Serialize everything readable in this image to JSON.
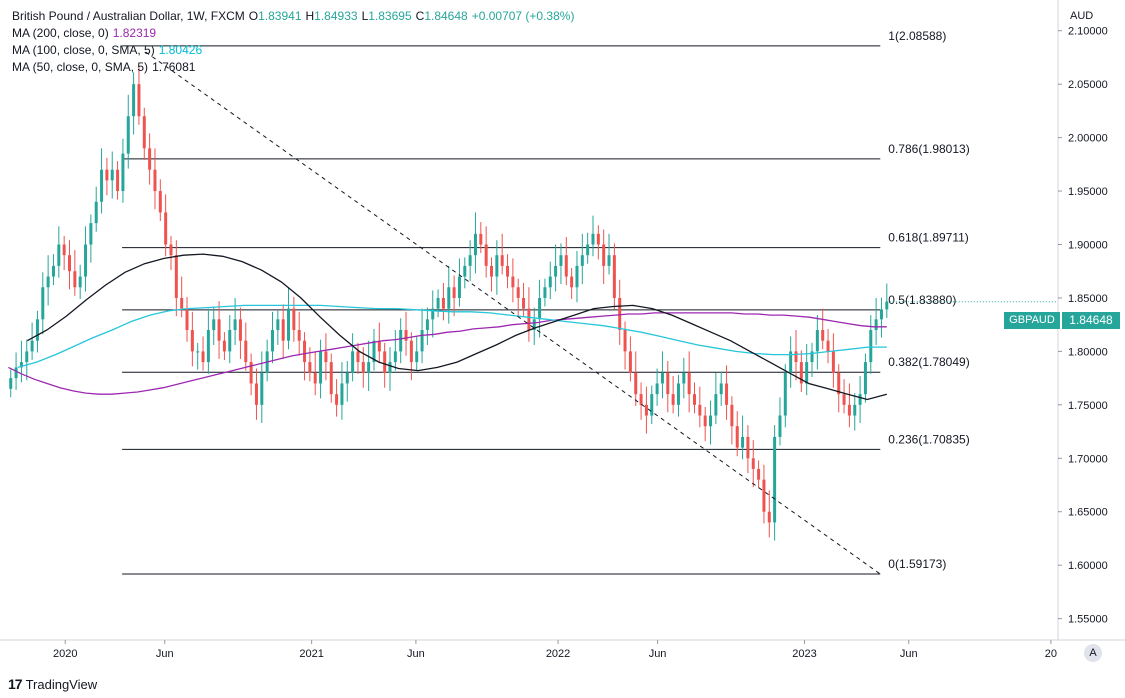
{
  "legend": {
    "title": "British Pound / Australian Dollar, 1W, FXCM",
    "open_label": "O",
    "open": "1.83941",
    "high_label": "H",
    "high": "1.84933",
    "low_label": "L",
    "low": "1.83695",
    "close_label": "C",
    "close": "1.84648",
    "change": "+0.00707 (+0.38%)",
    "ma200_label": "MA (200, close, 0)",
    "ma200_value": "1.82319",
    "ma100_label": "MA (100, close, 0, SMA, 5)",
    "ma100_value": "1.80426",
    "ma50_label": "MA (50, close, 0, SMA, 5)",
    "ma50_value": "1.76081"
  },
  "currency": "AUD",
  "symbol_badge": "GBPAUD",
  "price_badge": "1.84648",
  "footer": {
    "logo": "17",
    "brand": "TradingView"
  },
  "auto_button": "A",
  "colors": {
    "up": "#26a69a",
    "down": "#ef5350",
    "ma200": "#9c27b0",
    "ma100": "#26c6da",
    "ma50": "#131722",
    "grid": "#d1d4dc"
  },
  "chart_data": {
    "type": "candlestick",
    "title": "British Pound / Australian Dollar, 1W, FXCM",
    "y_axis": {
      "range": [
        1.53,
        2.125
      ],
      "ticks": [
        "2.10000",
        "2.05000",
        "2.00000",
        "1.95000",
        "1.90000",
        "1.85000",
        "1.80000",
        "1.75000",
        "1.70000",
        "1.65000",
        "1.60000",
        "1.55000"
      ]
    },
    "x_axis": {
      "ticks": [
        {
          "label": "2020",
          "index": 12
        },
        {
          "label": "Jun",
          "index": 33
        },
        {
          "label": "2021",
          "index": 64
        },
        {
          "label": "Jun",
          "index": 86
        },
        {
          "label": "2022",
          "index": 116
        },
        {
          "label": "Jun",
          "index": 137
        },
        {
          "label": "2023",
          "index": 168
        },
        {
          "label": "Jun",
          "index": 190
        },
        {
          "label": "20",
          "index": 220
        }
      ],
      "total_slots": 222
    },
    "fib_levels": [
      {
        "label": "1(2.08588)",
        "value": 2.08588
      },
      {
        "label": "0.786(1.98013)",
        "value": 1.98013
      },
      {
        "label": "0.618(1.89711)",
        "value": 1.89711
      },
      {
        "label": "0.5(1.83880)",
        "value": 1.8388
      },
      {
        "label": "0.382(1.78049)",
        "value": 1.78049
      },
      {
        "label": "0.236(1.70835)",
        "value": 1.70835
      },
      {
        "label": "0(1.59173)",
        "value": 1.59173
      }
    ],
    "fib_start_index": 24,
    "fib_end_index": 184,
    "trendline": {
      "from": {
        "index": 29,
        "value": 2.08
      },
      "to": {
        "index": 184,
        "value": 1.5917
      }
    },
    "closes": [
      1.775,
      1.785,
      1.79,
      1.8,
      1.81,
      1.83,
      1.86,
      1.87,
      1.88,
      1.9,
      1.89,
      1.875,
      1.86,
      1.87,
      1.9,
      1.92,
      1.94,
      1.97,
      1.96,
      1.97,
      1.95,
      1.985,
      2.02,
      2.05,
      2.02,
      1.99,
      1.97,
      1.95,
      1.93,
      1.9,
      1.89,
      1.85,
      1.84,
      1.82,
      1.8,
      1.8,
      1.79,
      1.82,
      1.83,
      1.81,
      1.8,
      1.82,
      1.83,
      1.81,
      1.79,
      1.77,
      1.75,
      1.78,
      1.8,
      1.82,
      1.83,
      1.81,
      1.84,
      1.82,
      1.81,
      1.79,
      1.78,
      1.77,
      1.8,
      1.79,
      1.76,
      1.75,
      1.77,
      1.78,
      1.8,
      1.79,
      1.78,
      1.79,
      1.81,
      1.8,
      1.78,
      1.79,
      1.8,
      1.82,
      1.81,
      1.79,
      1.8,
      1.82,
      1.83,
      1.84,
      1.85,
      1.84,
      1.86,
      1.85,
      1.87,
      1.88,
      1.89,
      1.91,
      1.9,
      1.88,
      1.87,
      1.89,
      1.88,
      1.87,
      1.86,
      1.85,
      1.84,
      1.82,
      1.83,
      1.85,
      1.86,
      1.87,
      1.88,
      1.89,
      1.87,
      1.86,
      1.88,
      1.89,
      1.9,
      1.91,
      1.9,
      1.88,
      1.89,
      1.85,
      1.82,
      1.8,
      1.78,
      1.76,
      1.75,
      1.74,
      1.76,
      1.77,
      1.78,
      1.76,
      1.75,
      1.77,
      1.78,
      1.76,
      1.75,
      1.74,
      1.73,
      1.74,
      1.76,
      1.77,
      1.75,
      1.73,
      1.71,
      1.72,
      1.7,
      1.69,
      1.68,
      1.65,
      1.64,
      1.72,
      1.74,
      1.78,
      1.8,
      1.79,
      1.77,
      1.79,
      1.8,
      1.82,
      1.81,
      1.8,
      1.78,
      1.76,
      1.75,
      1.74,
      1.75,
      1.76,
      1.79,
      1.82,
      1.83,
      1.8393,
      1.84648
    ],
    "ma200": [
      1.785,
      1.779,
      1.774,
      1.77,
      1.766,
      1.763,
      1.761,
      1.76,
      1.76,
      1.761,
      1.762,
      1.764,
      1.766,
      1.769,
      1.772,
      1.775,
      1.778,
      1.781,
      1.784,
      1.787,
      1.79,
      1.793,
      1.796,
      1.798,
      1.8,
      1.802,
      1.804,
      1.806,
      1.808,
      1.81,
      1.811,
      1.813,
      1.815,
      1.816,
      1.818,
      1.819,
      1.821,
      1.822,
      1.823,
      1.825,
      1.826,
      1.827,
      1.829,
      1.83,
      1.831,
      1.832,
      1.833,
      1.834,
      1.835,
      1.835,
      1.836,
      1.836,
      1.836,
      1.836,
      1.836,
      1.836,
      1.836,
      1.835,
      1.835,
      1.834,
      1.834,
      1.833,
      1.832,
      1.83,
      1.828,
      1.826,
      1.824,
      1.823,
      1.823
    ],
    "ma100": [
      1.785,
      1.79,
      1.797,
      1.805,
      1.813,
      1.82,
      1.828,
      1.834,
      1.838,
      1.84,
      1.841,
      1.842,
      1.843,
      1.843,
      1.843,
      1.843,
      1.843,
      1.842,
      1.841,
      1.84,
      1.84,
      1.839,
      1.838,
      1.837,
      1.837,
      1.836,
      1.834,
      1.832,
      1.83,
      1.828,
      1.826,
      1.824,
      1.821,
      1.818,
      1.814,
      1.81,
      1.806,
      1.803,
      1.8,
      1.798,
      1.797,
      1.797,
      1.798,
      1.8,
      1.802,
      1.804,
      1.804
    ],
    "ma50": [
      1.81,
      1.82,
      1.833,
      1.848,
      1.862,
      1.874,
      1.882,
      1.887,
      1.89,
      1.891,
      1.889,
      1.884,
      1.876,
      1.865,
      1.85,
      1.832,
      1.815,
      1.8,
      1.79,
      1.784,
      1.782,
      1.785,
      1.79,
      1.798,
      1.806,
      1.815,
      1.822,
      1.828,
      1.834,
      1.84,
      1.842,
      1.843,
      1.84,
      1.834,
      1.826,
      1.818,
      1.81,
      1.8,
      1.79,
      1.78,
      1.77,
      1.765,
      1.76,
      1.755,
      1.76
    ],
    "last_price": 1.84648
  }
}
